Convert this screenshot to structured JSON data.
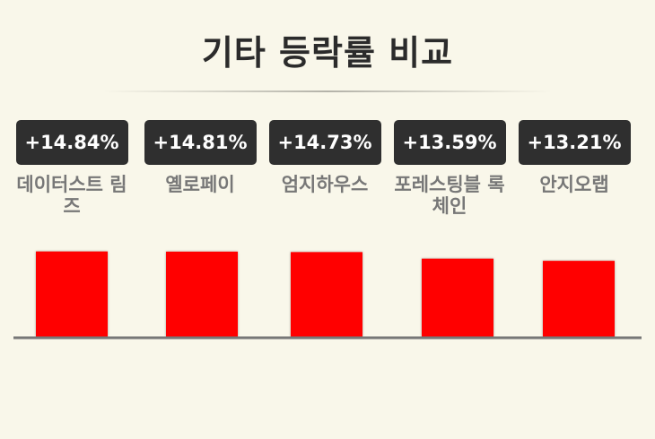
{
  "title": "기타 등락률 비교",
  "chart_data": {
    "type": "bar",
    "title": "기타 등락률 비교",
    "categories": [
      "데이터스트 림즈",
      "옐로페이",
      "엄지하우스",
      "포레스팅블 록체인",
      "안지오랩"
    ],
    "values": [
      14.84,
      14.81,
      14.73,
      13.59,
      13.21
    ],
    "value_labels": [
      "+14.84%",
      "+14.81%",
      "+14.73%",
      "+13.59%",
      "+13.21%"
    ],
    "unit": "%",
    "ylim": [
      0,
      16.5
    ],
    "grid": false,
    "legend": "none",
    "colors": {
      "bar": "#ff0000",
      "badge": "#2f2f2f",
      "axis": "#777777",
      "label": "#777777"
    }
  }
}
